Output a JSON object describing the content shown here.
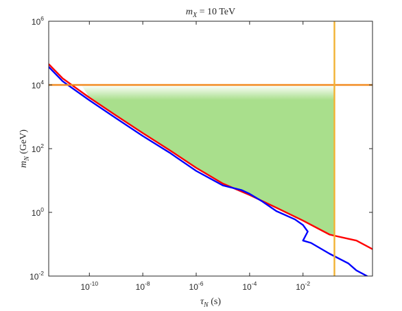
{
  "chart_data": {
    "type": "line",
    "title": {
      "var": "m",
      "sub": "X",
      "rest": " = 10 TeV"
    },
    "xlabel": {
      "var": "τ",
      "sub": "N",
      "unit": " (s)"
    },
    "ylabel": {
      "var": "m",
      "sub": "N",
      "unit": " (GeV)"
    },
    "x_scale": "log",
    "y_scale": "log",
    "xlim": [
      3e-12,
      4.0
    ],
    "ylim": [
      0.01,
      1000000
    ],
    "x_ticks": [
      {
        "value": 1e-10,
        "base": "10",
        "exp": "-10"
      },
      {
        "value": 1e-08,
        "base": "10",
        "exp": "-8"
      },
      {
        "value": 1e-06,
        "base": "10",
        "exp": "-6"
      },
      {
        "value": 0.0001,
        "base": "10",
        "exp": "-4"
      },
      {
        "value": 0.01,
        "base": "10",
        "exp": "-2"
      }
    ],
    "y_ticks": [
      {
        "value": 0.01,
        "base": "10",
        "exp": "-2"
      },
      {
        "value": 1,
        "base": "10",
        "exp": "0"
      },
      {
        "value": 100,
        "base": "10",
        "exp": "2"
      },
      {
        "value": 10000,
        "base": "10",
        "exp": "4"
      },
      {
        "value": 1000000,
        "base": "10",
        "exp": "6"
      }
    ],
    "grid": false,
    "series": [
      {
        "color": "#ff0000",
        "x": [
          3e-12,
          1e-11,
          1e-10,
          1e-09,
          1e-08,
          1e-07,
          1e-06,
          1e-05,
          0.0001,
          0.001,
          0.01,
          0.1,
          1,
          4.0
        ],
        "y": [
          45000,
          16000,
          4000,
          1100,
          310,
          90,
          25,
          8,
          3.5,
          1.4,
          0.55,
          0.2,
          0.13,
          0.07
        ]
      },
      {
        "color": "#0000ff",
        "x": [
          3e-12,
          1e-11,
          1e-10,
          1e-09,
          1e-08,
          1e-07,
          1e-06,
          1e-05,
          5e-05,
          0.0001,
          0.0003,
          0.001,
          0.005,
          0.01,
          0.015,
          0.01,
          0.02,
          0.1,
          0.5,
          1.0,
          2.5
        ],
        "y": [
          37000,
          13000,
          3300,
          900,
          250,
          75,
          20,
          7,
          5,
          3.8,
          2.2,
          1.1,
          0.6,
          0.4,
          0.25,
          0.13,
          0.11,
          0.05,
          0.025,
          0.015,
          0.01
        ]
      },
      {
        "color": "#f28a1f",
        "x": [
          3e-12,
          4.0
        ],
        "y": [
          10000,
          10000
        ]
      },
      {
        "color": "#f2b233",
        "x": [
          0.15,
          0.15
        ],
        "y": [
          0.01,
          1000000
        ]
      }
    ],
    "region": {
      "color": "#a9df8c",
      "x": [
        5e-11,
        1e-10,
        1e-09,
        1e-08,
        1e-07,
        1e-06,
        1e-05,
        0.0001,
        0.001,
        0.01,
        0.1,
        0.15,
        0.15
      ],
      "y": [
        10000,
        4000,
        1100,
        310,
        90,
        25,
        8,
        3.5,
        1.4,
        0.55,
        0.2,
        0.17,
        10000
      ]
    }
  }
}
